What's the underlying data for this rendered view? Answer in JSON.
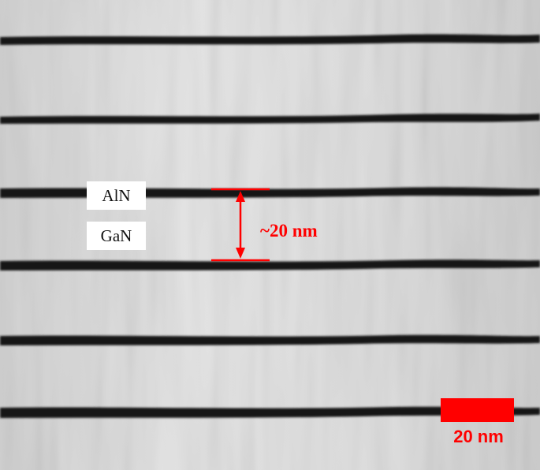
{
  "image": {
    "subject": "cross-sectional micrograph of AlN/GaN multilayer",
    "background_color": "#d9d9d9",
    "band_color": "#141414",
    "annotation_color": "#ff0000"
  },
  "labels": {
    "aln": "AlN",
    "gan": "GaN"
  },
  "measurement": {
    "text": "~20 nm"
  },
  "scale_bar": {
    "text": "20 nm"
  }
}
